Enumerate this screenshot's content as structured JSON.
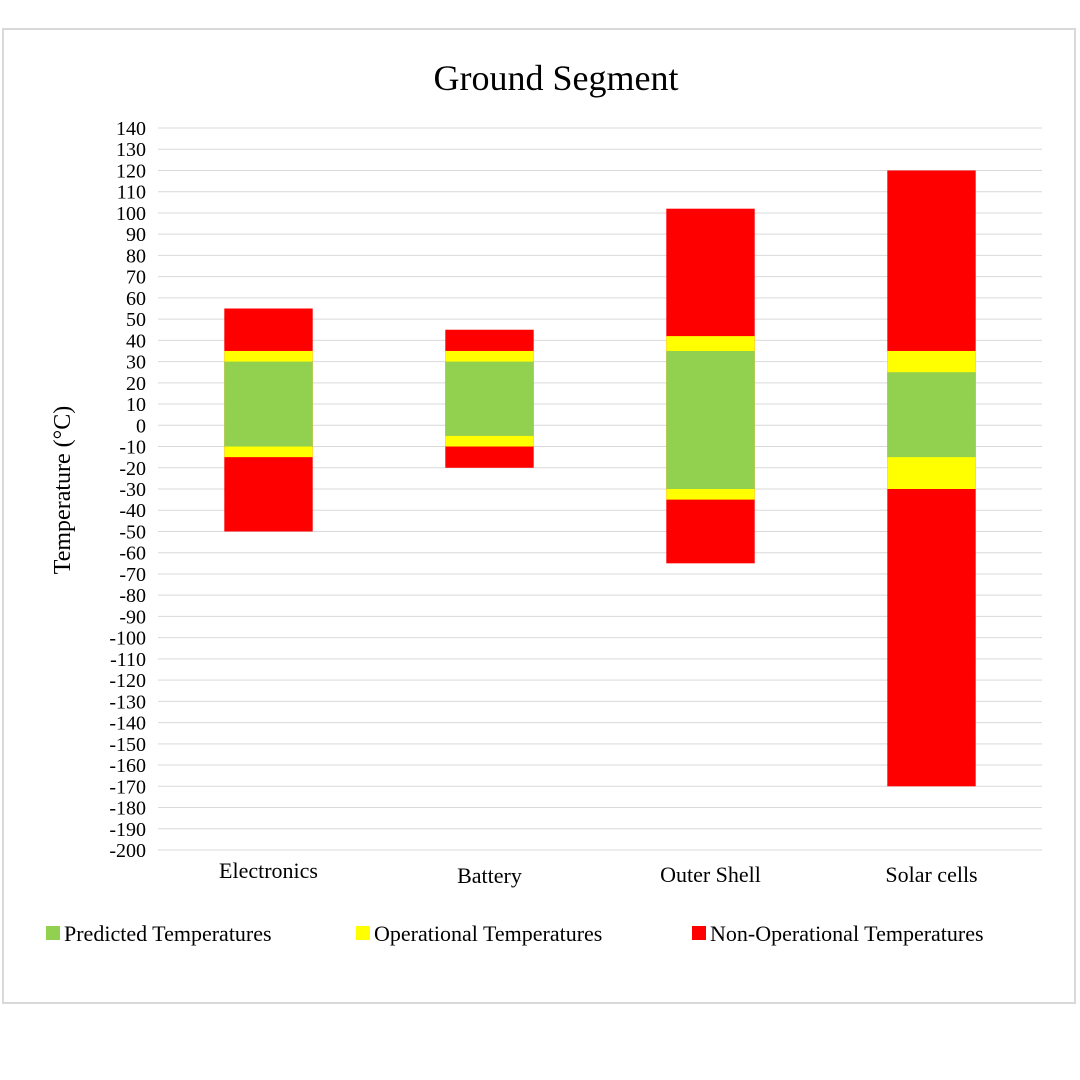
{
  "chart_data": {
    "type": "bar",
    "title": "Ground Segment",
    "ylabel": "Temperature (°C)",
    "xlabel": "",
    "ylim": [
      -200,
      140
    ],
    "ytick_step": 10,
    "grid": true,
    "legend_position": "bottom",
    "categories": [
      "Electronics",
      "Battery",
      "Outer Shell",
      "Solar cells"
    ],
    "series": [
      {
        "name": "Predicted Temperatures",
        "color": "#92d050",
        "ranges": [
          [
            -10,
            30
          ],
          [
            -5,
            30
          ],
          [
            -30,
            35
          ],
          [
            -15,
            25
          ]
        ]
      },
      {
        "name": "Operational Temperatures",
        "color": "#ffff00",
        "ranges": [
          [
            -15,
            35
          ],
          [
            -10,
            35
          ],
          [
            -35,
            42
          ],
          [
            -30,
            35
          ]
        ]
      },
      {
        "name": "Non-Operational Temperatures",
        "color": "#ff0000",
        "ranges": [
          [
            -50,
            55
          ],
          [
            -20,
            45
          ],
          [
            -65,
            102
          ],
          [
            -170,
            120
          ]
        ]
      }
    ]
  }
}
